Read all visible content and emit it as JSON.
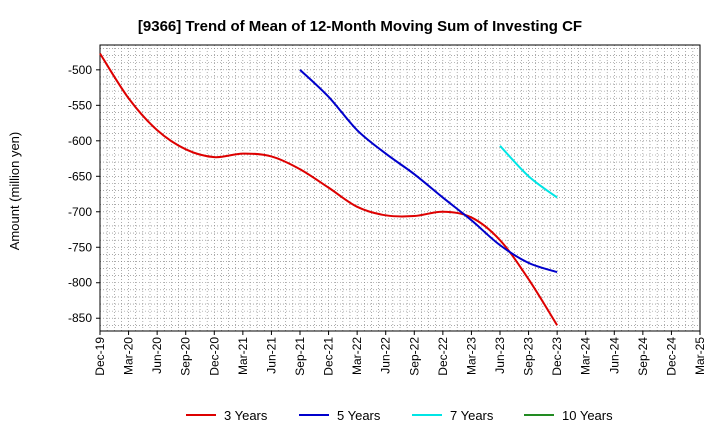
{
  "chart_data": {
    "type": "line",
    "title": "[9366]  Trend of Mean of 12-Month Moving Sum of Investing CF",
    "xlabel": "",
    "ylabel": "Amount (million yen)",
    "ylim": [
      -868,
      -465
    ],
    "yticks": [
      -500,
      -550,
      -600,
      -650,
      -700,
      -750,
      -800,
      -850
    ],
    "categories": [
      "Dec-19",
      "Mar-20",
      "Jun-20",
      "Sep-20",
      "Dec-20",
      "Mar-21",
      "Jun-21",
      "Sep-21",
      "Dec-21",
      "Mar-22",
      "Jun-22",
      "Sep-22",
      "Dec-22",
      "Mar-23",
      "Jun-23",
      "Sep-23",
      "Dec-23",
      "Mar-24",
      "Jun-24",
      "Sep-24",
      "Dec-24",
      "Mar-25"
    ],
    "series": [
      {
        "name": "3 Years",
        "color": "#dd0000",
        "values": [
          -477,
          -540,
          -585,
          -612,
          -623,
          -618,
          -622,
          -640,
          -666,
          -693,
          -705,
          -706,
          -700,
          -708,
          -740,
          -795,
          -860,
          null,
          null,
          null,
          null,
          null
        ]
      },
      {
        "name": "5 Years",
        "color": "#0000cc",
        "values": [
          null,
          null,
          null,
          null,
          null,
          null,
          null,
          -500,
          -538,
          -585,
          -618,
          -647,
          -680,
          -712,
          -747,
          -772,
          -785,
          null,
          null,
          null,
          null,
          null
        ]
      },
      {
        "name": "7 Years",
        "color": "#00e5e5",
        "values": [
          null,
          null,
          null,
          null,
          null,
          null,
          null,
          null,
          null,
          null,
          null,
          null,
          null,
          null,
          -607,
          -650,
          -680,
          null,
          null,
          null,
          null,
          null
        ]
      },
      {
        "name": "10 Years",
        "color": "#228b22",
        "values": [
          null,
          null,
          null,
          null,
          null,
          null,
          null,
          null,
          null,
          null,
          null,
          null,
          null,
          null,
          null,
          null,
          null,
          null,
          null,
          null,
          null,
          null
        ]
      }
    ],
    "grid": true,
    "legend": "bottom"
  }
}
